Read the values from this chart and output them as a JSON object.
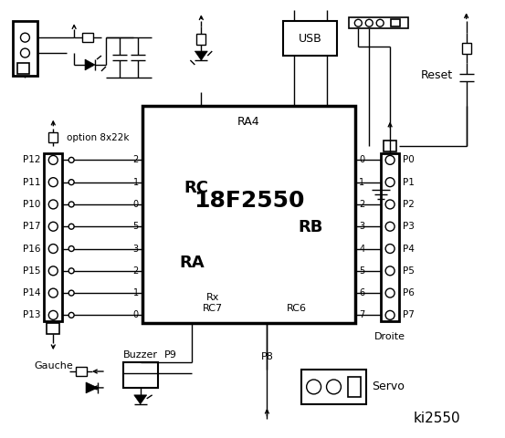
{
  "title": "ki2550",
  "chip_label": "18F2550",
  "chip_sub": "RA4",
  "rc_label": "RC",
  "ra_label": "RA",
  "rb_label": "RB",
  "usb_label": "USB",
  "reset_label": "Reset",
  "gauche_label": "Gauche",
  "droite_label": "Droite",
  "buzzer_label": "Buzzer",
  "servo_label": "Servo",
  "option_label": "option 8x22k",
  "rc_pins": [
    "2",
    "1",
    "0",
    "5",
    "3",
    "2",
    "1",
    "0"
  ],
  "rb_pins": [
    "0",
    "1",
    "2",
    "3",
    "4",
    "5",
    "6",
    "7"
  ],
  "left_labels": [
    "P12",
    "P11",
    "P10",
    "P17",
    "P16",
    "P15",
    "P14",
    "P13"
  ],
  "right_labels": [
    "P0",
    "P1",
    "P2",
    "P3",
    "P4",
    "P5",
    "P6",
    "P7"
  ],
  "rx_label": "Rx",
  "rc7_label": "RC7",
  "rc6_label": "RC6",
  "p9_label": "P9",
  "p8_label": "P8",
  "bg_color": "#ffffff"
}
